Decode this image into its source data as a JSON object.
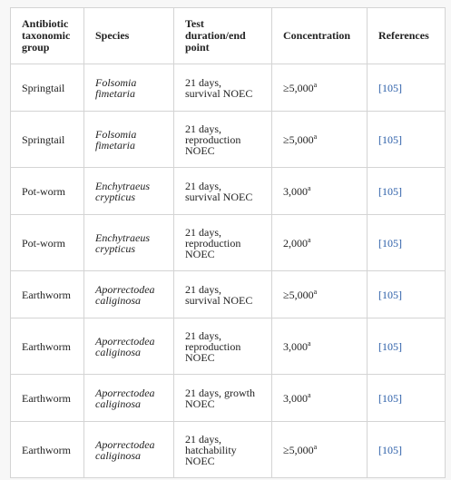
{
  "table": {
    "header": [
      [
        "Antibiotic",
        "taxonomic",
        "group"
      ],
      [
        "Species"
      ],
      [
        "Test",
        "duration/end",
        "point"
      ],
      [
        "Concentration"
      ],
      [
        "References"
      ]
    ],
    "rows": [
      [
        "Springtail",
        [
          "Folsomia",
          "fimetaria"
        ],
        [
          "21 days,",
          "survival NOEC"
        ],
        {
          "value": "≥5,000",
          "sup": "a"
        },
        "[105]"
      ],
      [
        "Springtail",
        [
          "Folsomia",
          "fimetaria"
        ],
        [
          "21 days,",
          "reproduction",
          "NOEC"
        ],
        {
          "value": "≥5,000",
          "sup": "a"
        },
        "[105]"
      ],
      [
        "Pot-worm",
        [
          "Enchytraeus",
          "crypticus"
        ],
        [
          "21 days,",
          "survival NOEC"
        ],
        {
          "value": "3,000",
          "sup": "a"
        },
        "[105]"
      ],
      [
        "Pot-worm",
        [
          "Enchytraeus",
          "crypticus"
        ],
        [
          "21 days,",
          "reproduction",
          "NOEC"
        ],
        {
          "value": "2,000",
          "sup": "a"
        },
        "[105]"
      ],
      [
        "Earthworm",
        [
          "Aporrectodea",
          "caliginosa"
        ],
        [
          "21 days,",
          "survival NOEC"
        ],
        {
          "value": "≥5,000",
          "sup": "a"
        },
        "[105]"
      ],
      [
        "Earthworm",
        [
          "Aporrectodea",
          "caliginosa"
        ],
        [
          "21 days,",
          "reproduction",
          "NOEC"
        ],
        {
          "value": "3,000",
          "sup": "a"
        },
        "[105]"
      ],
      [
        "Earthworm",
        [
          "Aporrectodea",
          "caliginosa"
        ],
        [
          "21 days, growth",
          "NOEC"
        ],
        {
          "value": "3,000",
          "sup": "a"
        },
        "[105]"
      ],
      [
        "Earthworm",
        [
          "Aporrectodea",
          "caliginosa"
        ],
        [
          "21 days,",
          "hatchability",
          "NOEC"
        ],
        {
          "value": "≥5,000",
          "sup": "a"
        },
        "[105]"
      ]
    ]
  }
}
